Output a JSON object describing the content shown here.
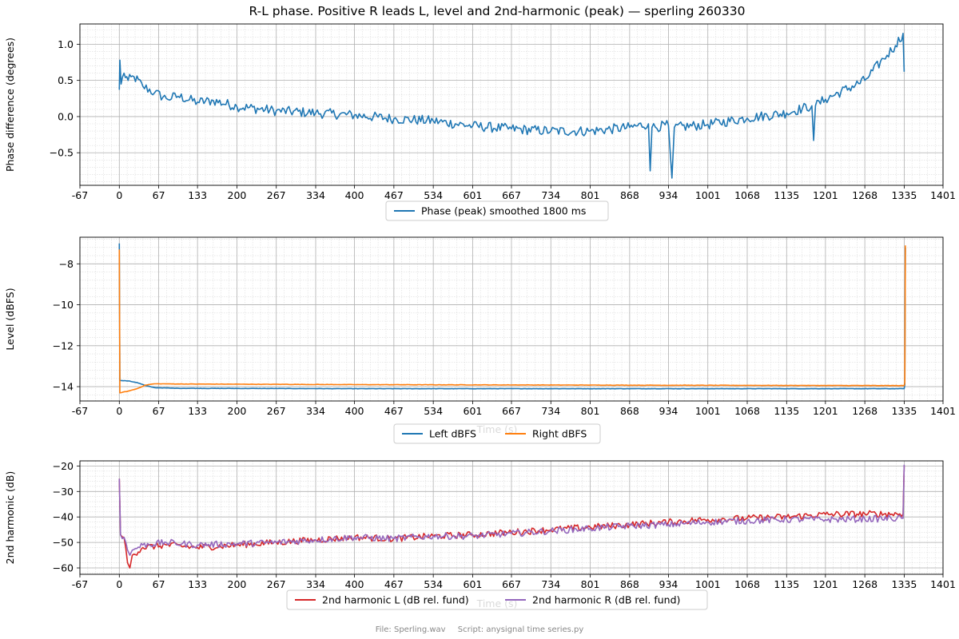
{
  "chart_data": [
    {
      "type": "line",
      "title": "R-L phase. Positive R leads L, level and 2nd-harmonic (peak) — sperling 260330",
      "xlabel": "",
      "ylabel": "Phase difference (degrees)",
      "xlim": [
        -67,
        1401
      ],
      "ylim": [
        -0.95,
        1.28
      ],
      "xticks": [
        "-67",
        "0",
        "67",
        "133",
        "200",
        "267",
        "334",
        "400",
        "467",
        "534",
        "601",
        "667",
        "734",
        "801",
        "868",
        "934",
        "1001",
        "1068",
        "1135",
        "1201",
        "1268",
        "1335",
        "1401"
      ],
      "yticks": [
        1.0,
        0.5,
        0.0,
        -0.5
      ],
      "ytick_labels": [
        "1.0",
        "0.5",
        "0.0",
        "−0.5"
      ],
      "grid": true,
      "legend_position": "below",
      "series": [
        {
          "name": "Phase (peak) smoothed 1800 ms",
          "color": "#1f77b4",
          "noise": 0.07,
          "points": [
            [
              0,
              0.37
            ],
            [
              1,
              0.78
            ],
            [
              3,
              0.45
            ],
            [
              8,
              0.6
            ],
            [
              15,
              0.5
            ],
            [
              25,
              0.55
            ],
            [
              40,
              0.42
            ],
            [
              60,
              0.33
            ],
            [
              80,
              0.25
            ],
            [
              100,
              0.28
            ],
            [
              133,
              0.2
            ],
            [
              160,
              0.22
            ],
            [
              200,
              0.14
            ],
            [
              267,
              0.08
            ],
            [
              334,
              0.05
            ],
            [
              400,
              0.02
            ],
            [
              467,
              -0.03
            ],
            [
              534,
              -0.06
            ],
            [
              601,
              -0.13
            ],
            [
              667,
              -0.17
            ],
            [
              734,
              -0.2
            ],
            [
              801,
              -0.2
            ],
            [
              868,
              -0.15
            ],
            [
              900,
              -0.1
            ],
            [
              903,
              -0.75
            ],
            [
              906,
              -0.15
            ],
            [
              934,
              -0.12
            ],
            [
              940,
              -0.85
            ],
            [
              944,
              -0.15
            ],
            [
              1001,
              -0.11
            ],
            [
              1068,
              -0.02
            ],
            [
              1135,
              0.05
            ],
            [
              1178,
              0.15
            ],
            [
              1181,
              -0.33
            ],
            [
              1184,
              0.15
            ],
            [
              1201,
              0.24
            ],
            [
              1268,
              0.5
            ],
            [
              1300,
              0.8
            ],
            [
              1320,
              0.98
            ],
            [
              1333,
              1.15
            ],
            [
              1335,
              0.62
            ]
          ]
        }
      ]
    },
    {
      "type": "line",
      "title": "",
      "xlabel": "Time (s)",
      "ylabel": "Level (dBFS)",
      "xlim": [
        -67,
        1401
      ],
      "ylim": [
        -14.7,
        -6.7
      ],
      "xticks": [
        "-67",
        "0",
        "67",
        "133",
        "200",
        "267",
        "334",
        "400",
        "467",
        "534",
        "601",
        "667",
        "734",
        "801",
        "868",
        "934",
        "1001",
        "1068",
        "1135",
        "1201",
        "1268",
        "1335",
        "1401"
      ],
      "yticks": [
        -8,
        -10,
        -12,
        -14
      ],
      "ytick_labels": [
        "−8",
        "−10",
        "−12",
        "−14"
      ],
      "grid": true,
      "legend_position": "below",
      "series": [
        {
          "name": "Left dBFS",
          "color": "#1f77b4",
          "noise": 0.008,
          "points": [
            [
              0,
              -7.0
            ],
            [
              1,
              -13.7
            ],
            [
              15,
              -13.72
            ],
            [
              30,
              -13.8
            ],
            [
              45,
              -13.95
            ],
            [
              60,
              -14.05
            ],
            [
              100,
              -14.08
            ],
            [
              400,
              -14.1
            ],
            [
              900,
              -14.1
            ],
            [
              1335,
              -14.1
            ],
            [
              1336,
              -13.9
            ],
            [
              1337,
              -7.2
            ]
          ]
        },
        {
          "name": "Right dBFS",
          "color": "#ff7f0e",
          "noise": 0.008,
          "points": [
            [
              0,
              -7.3
            ],
            [
              1,
              -14.3
            ],
            [
              15,
              -14.22
            ],
            [
              30,
              -14.1
            ],
            [
              45,
              -13.92
            ],
            [
              60,
              -13.86
            ],
            [
              100,
              -13.87
            ],
            [
              400,
              -13.9
            ],
            [
              900,
              -13.93
            ],
            [
              1335,
              -13.95
            ],
            [
              1336,
              -13.8
            ],
            [
              1337,
              -7.1
            ]
          ]
        }
      ]
    },
    {
      "type": "line",
      "title": "",
      "xlabel": "Time (s)",
      "ylabel": "2nd harmonic (dB)",
      "xlim": [
        -67,
        1401
      ],
      "ylim": [
        -62.5,
        -18
      ],
      "xticks": [
        "-67",
        "0",
        "67",
        "133",
        "200",
        "267",
        "334",
        "400",
        "467",
        "534",
        "601",
        "667",
        "734",
        "801",
        "868",
        "934",
        "1001",
        "1068",
        "1135",
        "1201",
        "1268",
        "1335",
        "1401"
      ],
      "yticks": [
        -20,
        -30,
        -40,
        -50,
        -60
      ],
      "ytick_labels": [
        "−20",
        "−30",
        "−40",
        "−50",
        "−60"
      ],
      "grid": true,
      "legend_position": "below",
      "series": [
        {
          "name": "2nd harmonic L (dB rel. fund)",
          "color": "#d62728",
          "noise": 1.3,
          "points": [
            [
              0,
              -25
            ],
            [
              2,
              -47
            ],
            [
              8,
              -48
            ],
            [
              14,
              -58
            ],
            [
              18,
              -60
            ],
            [
              22,
              -55
            ],
            [
              40,
              -52
            ],
            [
              80,
              -51
            ],
            [
              133,
              -52
            ],
            [
              200,
              -51
            ],
            [
              267,
              -50
            ],
            [
              334,
              -49
            ],
            [
              400,
              -48
            ],
            [
              467,
              -48.5
            ],
            [
              534,
              -47.5
            ],
            [
              601,
              -47
            ],
            [
              667,
              -46
            ],
            [
              734,
              -45
            ],
            [
              801,
              -44
            ],
            [
              868,
              -43
            ],
            [
              934,
              -42
            ],
            [
              1001,
              -41
            ],
            [
              1068,
              -40.5
            ],
            [
              1135,
              -40
            ],
            [
              1201,
              -39
            ],
            [
              1268,
              -38.8
            ],
            [
              1333,
              -38.8
            ],
            [
              1335,
              -20
            ]
          ]
        },
        {
          "name": "2nd harmonic R (dB rel. fund)",
          "color": "#9467bd",
          "noise": 1.3,
          "points": [
            [
              0,
              -25
            ],
            [
              2,
              -47
            ],
            [
              8,
              -48
            ],
            [
              14,
              -53
            ],
            [
              18,
              -55
            ],
            [
              22,
              -53
            ],
            [
              40,
              -51
            ],
            [
              80,
              -50
            ],
            [
              133,
              -51
            ],
            [
              200,
              -50.5
            ],
            [
              267,
              -50
            ],
            [
              334,
              -49
            ],
            [
              400,
              -48
            ],
            [
              467,
              -48.5
            ],
            [
              534,
              -47.5
            ],
            [
              601,
              -47.5
            ],
            [
              667,
              -46.5
            ],
            [
              734,
              -45.5
            ],
            [
              801,
              -44.5
            ],
            [
              868,
              -43.5
            ],
            [
              934,
              -43
            ],
            [
              1001,
              -42
            ],
            [
              1068,
              -41.5
            ],
            [
              1135,
              -41
            ],
            [
              1201,
              -41
            ],
            [
              1268,
              -40.8
            ],
            [
              1333,
              -40.5
            ],
            [
              1335,
              -19.5
            ]
          ]
        }
      ]
    }
  ],
  "footer": {
    "file": "File: Sperling.wav",
    "script": "Script: anysignal time series.py"
  }
}
